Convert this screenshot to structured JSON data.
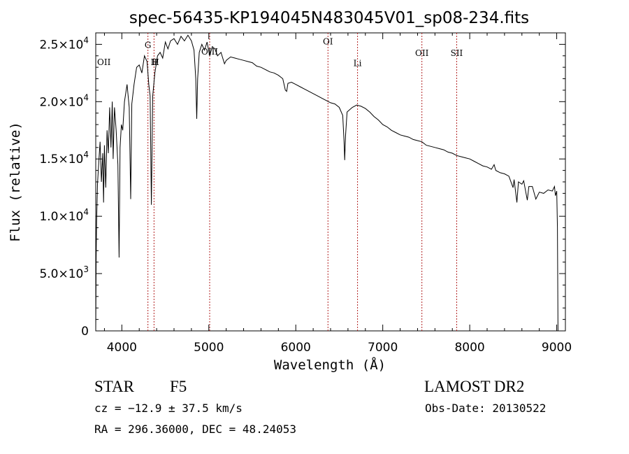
{
  "chart_data": {
    "type": "line",
    "title": "spec-56435-KP194045N483045V01_sp08-234.fits",
    "xlabel": "Wavelength (Å)",
    "ylabel": "Flux (relative)",
    "xlim": [
      3700,
      9100
    ],
    "ylim": [
      0,
      26000
    ],
    "x_ticks": [
      4000,
      5000,
      6000,
      7000,
      8000,
      9000
    ],
    "x_tick_labels": [
      "4000",
      "5000",
      "6000",
      "7000",
      "8000",
      "9000"
    ],
    "y_ticks": [
      {
        "value": 0,
        "mantissa": "0",
        "exp": ""
      },
      {
        "value": 5000,
        "mantissa": "5.0×10",
        "exp": "3"
      },
      {
        "value": 10000,
        "mantissa": "1.0×10",
        "exp": "4"
      },
      {
        "value": 15000,
        "mantissa": "1.5×10",
        "exp": "4"
      },
      {
        "value": 20000,
        "mantissa": "2.0×10",
        "exp": "4"
      },
      {
        "value": 25000,
        "mantissa": "2.5×10",
        "exp": "4"
      }
    ],
    "grid": false,
    "series": [
      {
        "color": "#000000",
        "points": [
          [
            3700,
            0
          ],
          [
            3705,
            6500
          ],
          [
            3710,
            9500
          ],
          [
            3720,
            12800
          ],
          [
            3735,
            14800
          ],
          [
            3750,
            16500
          ],
          [
            3765,
            13000
          ],
          [
            3780,
            15500
          ],
          [
            3790,
            11200
          ],
          [
            3800,
            16200
          ],
          [
            3815,
            12500
          ],
          [
            3830,
            17500
          ],
          [
            3845,
            15500
          ],
          [
            3860,
            19500
          ],
          [
            3875,
            16000
          ],
          [
            3890,
            20000
          ],
          [
            3900,
            15000
          ],
          [
            3915,
            19500
          ],
          [
            3935,
            17500
          ],
          [
            3955,
            14500
          ],
          [
            3968,
            6400
          ],
          [
            3980,
            16000
          ],
          [
            3995,
            18000
          ],
          [
            4010,
            17500
          ],
          [
            4030,
            20000
          ],
          [
            4060,
            21500
          ],
          [
            4085,
            19500
          ],
          [
            4102,
            11500
          ],
          [
            4115,
            19800
          ],
          [
            4140,
            21500
          ],
          [
            4170,
            23000
          ],
          [
            4200,
            23200
          ],
          [
            4230,
            22500
          ],
          [
            4260,
            24000
          ],
          [
            4290,
            23500
          ],
          [
            4310,
            21500
          ],
          [
            4325,
            20500
          ],
          [
            4340,
            11000
          ],
          [
            4355,
            20500
          ],
          [
            4380,
            22500
          ],
          [
            4410,
            24000
          ],
          [
            4440,
            24300
          ],
          [
            4470,
            23800
          ],
          [
            4500,
            25200
          ],
          [
            4530,
            24600
          ],
          [
            4560,
            25300
          ],
          [
            4600,
            25500
          ],
          [
            4640,
            25000
          ],
          [
            4680,
            25700
          ],
          [
            4720,
            25300
          ],
          [
            4760,
            25800
          ],
          [
            4800,
            25300
          ],
          [
            4830,
            24500
          ],
          [
            4850,
            22000
          ],
          [
            4861,
            18500
          ],
          [
            4872,
            22000
          ],
          [
            4890,
            24300
          ],
          [
            4920,
            25000
          ],
          [
            4950,
            24500
          ],
          [
            4980,
            25200
          ],
          [
            5010,
            24000
          ],
          [
            5040,
            24800
          ],
          [
            5070,
            24600
          ],
          [
            5100,
            24000
          ],
          [
            5140,
            24300
          ],
          [
            5180,
            23300
          ],
          [
            5200,
            23600
          ],
          [
            5250,
            23900
          ],
          [
            5300,
            23800
          ],
          [
            5350,
            23700
          ],
          [
            5400,
            23600
          ],
          [
            5450,
            23500
          ],
          [
            5500,
            23400
          ],
          [
            5550,
            23100
          ],
          [
            5600,
            23000
          ],
          [
            5650,
            22800
          ],
          [
            5700,
            22600
          ],
          [
            5750,
            22500
          ],
          [
            5800,
            22300
          ],
          [
            5850,
            22000
          ],
          [
            5880,
            21000
          ],
          [
            5895,
            20900
          ],
          [
            5910,
            21600
          ],
          [
            5950,
            21700
          ],
          [
            6000,
            21500
          ],
          [
            6050,
            21300
          ],
          [
            6100,
            21100
          ],
          [
            6150,
            20900
          ],
          [
            6200,
            20700
          ],
          [
            6250,
            20500
          ],
          [
            6300,
            20300
          ],
          [
            6350,
            20100
          ],
          [
            6400,
            19900
          ],
          [
            6450,
            19800
          ],
          [
            6500,
            19500
          ],
          [
            6540,
            18800
          ],
          [
            6555,
            16500
          ],
          [
            6562,
            14900
          ],
          [
            6572,
            17000
          ],
          [
            6590,
            19100
          ],
          [
            6620,
            19300
          ],
          [
            6650,
            19500
          ],
          [
            6700,
            19700
          ],
          [
            6750,
            19600
          ],
          [
            6800,
            19400
          ],
          [
            6850,
            19100
          ],
          [
            6900,
            18700
          ],
          [
            6950,
            18400
          ],
          [
            7000,
            18000
          ],
          [
            7050,
            17800
          ],
          [
            7100,
            17500
          ],
          [
            7150,
            17300
          ],
          [
            7200,
            17100
          ],
          [
            7250,
            17000
          ],
          [
            7300,
            16900
          ],
          [
            7350,
            16700
          ],
          [
            7400,
            16600
          ],
          [
            7450,
            16500
          ],
          [
            7500,
            16200
          ],
          [
            7550,
            16100
          ],
          [
            7600,
            16000
          ],
          [
            7650,
            15900
          ],
          [
            7700,
            15800
          ],
          [
            7750,
            15600
          ],
          [
            7800,
            15500
          ],
          [
            7850,
            15300
          ],
          [
            7900,
            15200
          ],
          [
            7950,
            15100
          ],
          [
            8000,
            15000
          ],
          [
            8050,
            14800
          ],
          [
            8100,
            14600
          ],
          [
            8150,
            14400
          ],
          [
            8200,
            14300
          ],
          [
            8250,
            14100
          ],
          [
            8280,
            14500
          ],
          [
            8300,
            14000
          ],
          [
            8350,
            13800
          ],
          [
            8400,
            13700
          ],
          [
            8450,
            13500
          ],
          [
            8498,
            12500
          ],
          [
            8510,
            13200
          ],
          [
            8542,
            11200
          ],
          [
            8560,
            13000
          ],
          [
            8600,
            12800
          ],
          [
            8620,
            13100
          ],
          [
            8662,
            11400
          ],
          [
            8680,
            12600
          ],
          [
            8720,
            12600
          ],
          [
            8760,
            11500
          ],
          [
            8800,
            12100
          ],
          [
            8850,
            12000
          ],
          [
            8900,
            12300
          ],
          [
            8950,
            12200
          ],
          [
            8975,
            12600
          ],
          [
            8985,
            11800
          ],
          [
            9000,
            12200
          ],
          [
            9008,
            9000
          ],
          [
            9015,
            0
          ]
        ]
      }
    ],
    "marker_lines": [
      {
        "x": 4300,
        "label": "G",
        "label_y": 24700
      },
      {
        "x": 4370,
        "label": "II",
        "label_y": 23200
      },
      {
        "x": 5010,
        "label": "OIII",
        "label_y": 24100
      },
      {
        "x": 6370,
        "label": "OI",
        "label_y": 25000
      },
      {
        "x": 6710,
        "label": "Li",
        "label_y": 23100
      },
      {
        "x": 7450,
        "label": "OII",
        "label_y": 24000
      },
      {
        "x": 7850,
        "label": "SII",
        "label_y": 24000
      }
    ],
    "edge_labels": [
      {
        "x": 3700,
        "label": "OII",
        "label_y": 23200
      },
      {
        "x": 4330,
        "label": "H",
        "label_y": 23200
      }
    ]
  },
  "info": {
    "class": "STAR",
    "subclass": "F5",
    "survey": "LAMOST DR2",
    "cz": "cz = −12.9 ± 37.5 km/s",
    "obs_date": "Obs-Date: 20130522",
    "coords": "RA = 296.36000, DEC =  48.24053"
  },
  "colors": {
    "axis": "#000000",
    "spectrum": "#000000",
    "marker_line": "#b22222"
  }
}
